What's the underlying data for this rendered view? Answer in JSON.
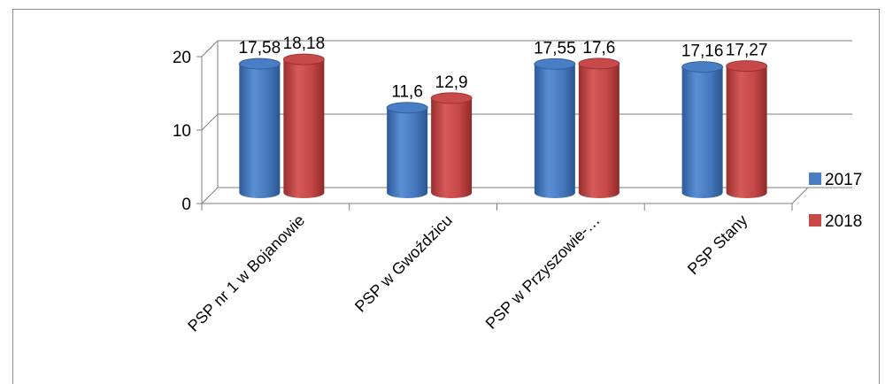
{
  "chart_data": {
    "type": "bar",
    "style": "3d-cylinder",
    "categories": [
      "PSP nr 1 w Bojanowie",
      "PSP w Gwoździcu",
      "PSP w Przyszowie-…",
      "PSP Stany"
    ],
    "series": [
      {
        "name": "2017",
        "values": [
          17.58,
          11.6,
          17.55,
          17.16
        ],
        "labels": [
          "17,58",
          "11,6",
          "17,55",
          "17,16"
        ],
        "color": "#4a7ec4"
      },
      {
        "name": "2018",
        "values": [
          18.18,
          12.9,
          17.6,
          17.27
        ],
        "labels": [
          "18,18",
          "12,9",
          "17,6",
          "17,27"
        ],
        "color": "#c8494a"
      }
    ],
    "yticks": [
      0,
      10,
      20
    ],
    "ylim": [
      0,
      20
    ],
    "grid": true,
    "legend": "right"
  }
}
